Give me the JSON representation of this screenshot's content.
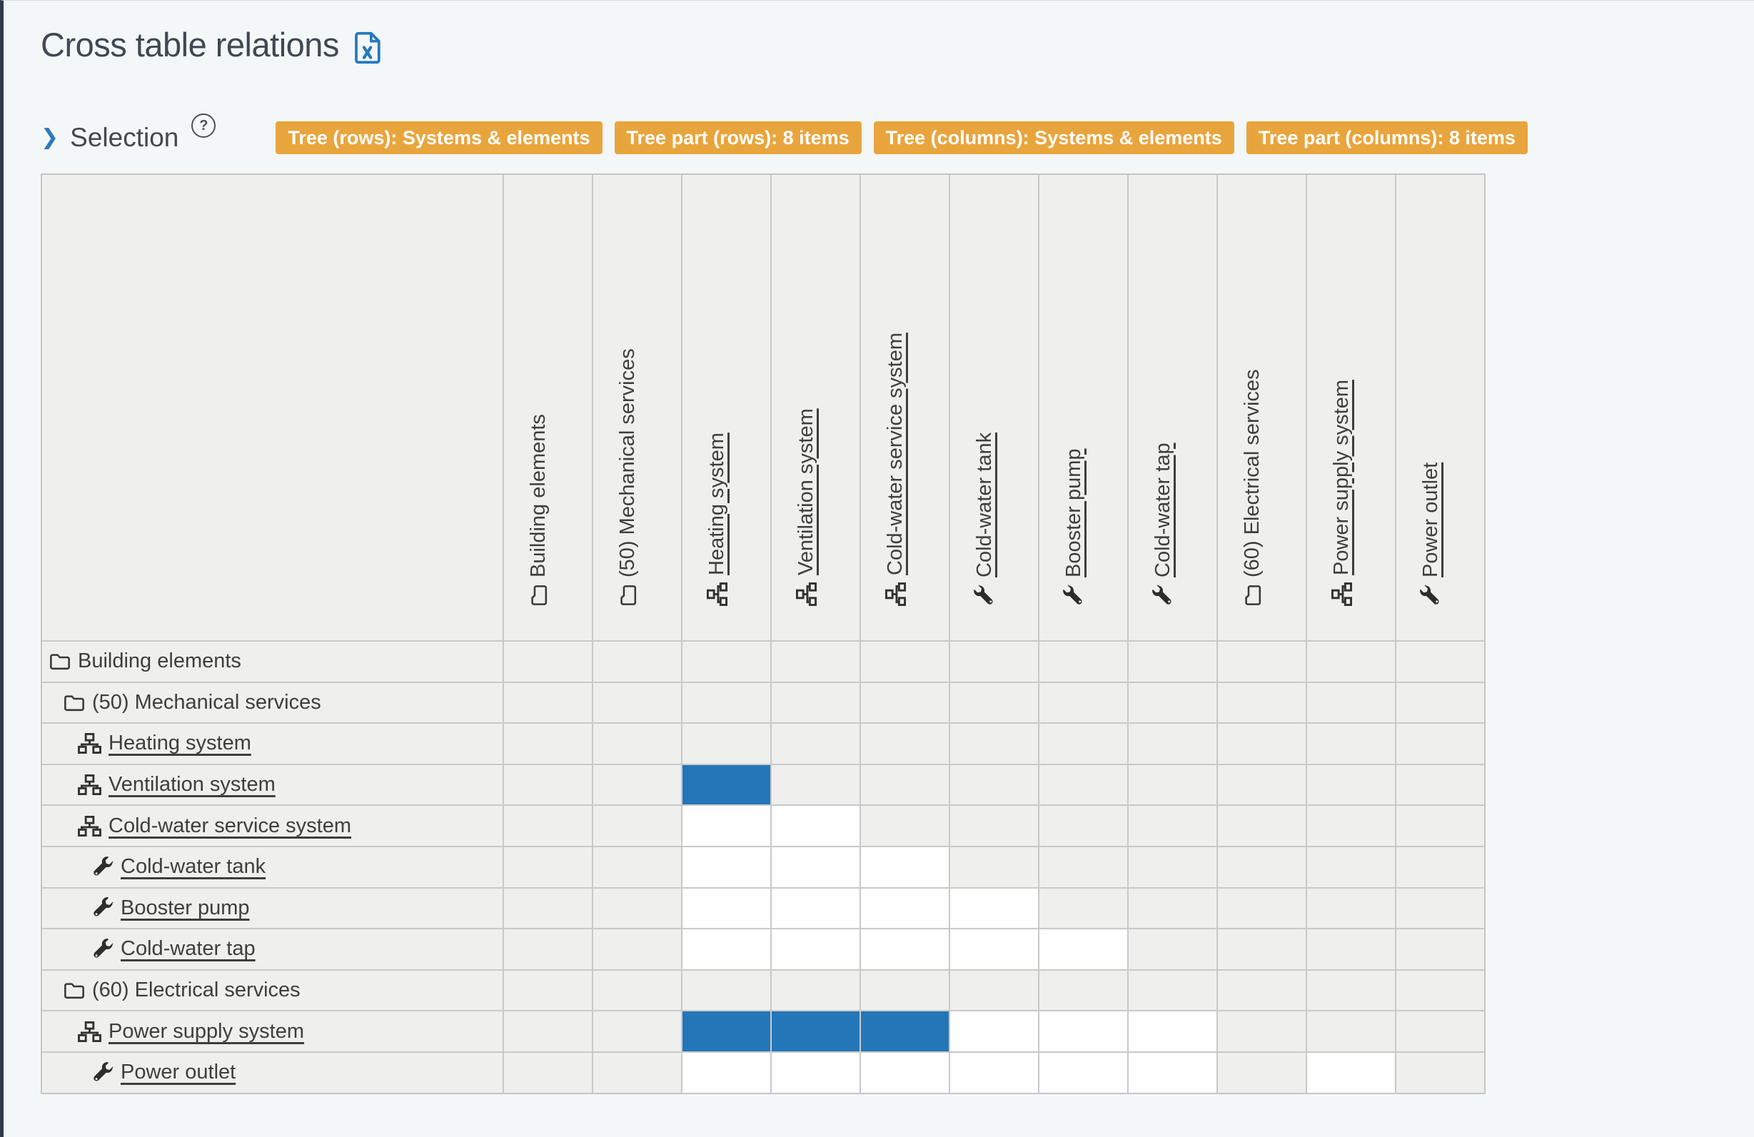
{
  "header": {
    "title": "Cross table relations",
    "export_icon": "excel-file-icon"
  },
  "selection": {
    "expander_icon": "chevron-right-icon",
    "label": "Selection",
    "help_icon": "question-circle-icon",
    "badges": [
      "Tree (rows): Systems & elements",
      "Tree part (rows): 8 items",
      "Tree (columns): Systems & elements",
      "Tree part (columns): 8 items"
    ]
  },
  "colors": {
    "relation_blue": "#2376b8",
    "badge_orange": "#e9a53d",
    "cell_gray": "#efefed",
    "cell_white": "#ffffff",
    "grid_line": "#c9c9c9",
    "page_background": "#f3f7f8",
    "accent_blue": "#2478bd"
  },
  "table": {
    "cell_states_legend": {
      "none": "not applicable",
      "open": "editable empty relation",
      "selected": "existing relation"
    },
    "columns": [
      {
        "label": "Building elements",
        "icon": "folder-icon",
        "link": false
      },
      {
        "label": "(50) Mechanical services",
        "icon": "folder-icon",
        "link": false
      },
      {
        "label": "Heating system",
        "icon": "sitemap-icon",
        "link": true
      },
      {
        "label": "Ventilation system",
        "icon": "sitemap-icon",
        "link": true
      },
      {
        "label": "Cold-water service system",
        "icon": "sitemap-icon",
        "link": true
      },
      {
        "label": "Cold-water tank",
        "icon": "wrench-icon",
        "link": true
      },
      {
        "label": "Booster pump",
        "icon": "wrench-icon",
        "link": true
      },
      {
        "label": "Cold-water tap",
        "icon": "wrench-icon",
        "link": true
      },
      {
        "label": "(60) Electrical services",
        "icon": "folder-icon",
        "link": false
      },
      {
        "label": "Power supply system",
        "icon": "sitemap-icon",
        "link": true
      },
      {
        "label": "Power outlet",
        "icon": "wrench-icon",
        "link": true
      }
    ],
    "rows": [
      {
        "label": "Building elements",
        "icon": "folder-icon",
        "link": false,
        "indent": 0,
        "cells": [
          "none",
          "none",
          "none",
          "none",
          "none",
          "none",
          "none",
          "none",
          "none",
          "none",
          "none"
        ]
      },
      {
        "label": "(50) Mechanical services",
        "icon": "folder-icon",
        "link": false,
        "indent": 1,
        "cells": [
          "none",
          "none",
          "none",
          "none",
          "none",
          "none",
          "none",
          "none",
          "none",
          "none",
          "none"
        ]
      },
      {
        "label": "Heating system",
        "icon": "sitemap-icon",
        "link": true,
        "indent": 2,
        "cells": [
          "none",
          "none",
          "none",
          "none",
          "none",
          "none",
          "none",
          "none",
          "none",
          "none",
          "none"
        ]
      },
      {
        "label": "Ventilation system",
        "icon": "sitemap-icon",
        "link": true,
        "indent": 2,
        "cells": [
          "none",
          "none",
          "selected",
          "none",
          "none",
          "none",
          "none",
          "none",
          "none",
          "none",
          "none"
        ]
      },
      {
        "label": "Cold-water service system",
        "icon": "sitemap-icon",
        "link": true,
        "indent": 2,
        "cells": [
          "none",
          "none",
          "open",
          "open",
          "none",
          "none",
          "none",
          "none",
          "none",
          "none",
          "none"
        ]
      },
      {
        "label": "Cold-water tank",
        "icon": "wrench-icon",
        "link": true,
        "indent": 3,
        "cells": [
          "none",
          "none",
          "open",
          "open",
          "open",
          "none",
          "none",
          "none",
          "none",
          "none",
          "none"
        ]
      },
      {
        "label": "Booster pump",
        "icon": "wrench-icon",
        "link": true,
        "indent": 3,
        "cells": [
          "none",
          "none",
          "open",
          "open",
          "open",
          "open",
          "none",
          "none",
          "none",
          "none",
          "none"
        ]
      },
      {
        "label": "Cold-water tap",
        "icon": "wrench-icon",
        "link": true,
        "indent": 3,
        "cells": [
          "none",
          "none",
          "open",
          "open",
          "open",
          "open",
          "open",
          "none",
          "none",
          "none",
          "none"
        ]
      },
      {
        "label": "(60) Electrical services",
        "icon": "folder-icon",
        "link": false,
        "indent": 1,
        "cells": [
          "none",
          "none",
          "none",
          "none",
          "none",
          "none",
          "none",
          "none",
          "none",
          "none",
          "none"
        ]
      },
      {
        "label": "Power supply system",
        "icon": "sitemap-icon",
        "link": true,
        "indent": 2,
        "cells": [
          "none",
          "none",
          "selected",
          "selected",
          "selected",
          "open",
          "open",
          "open",
          "none",
          "none",
          "none"
        ]
      },
      {
        "label": "Power outlet",
        "icon": "wrench-icon",
        "link": true,
        "indent": 3,
        "cells": [
          "none",
          "none",
          "open",
          "open",
          "open",
          "open",
          "open",
          "open",
          "none",
          "open",
          "none"
        ]
      }
    ]
  }
}
